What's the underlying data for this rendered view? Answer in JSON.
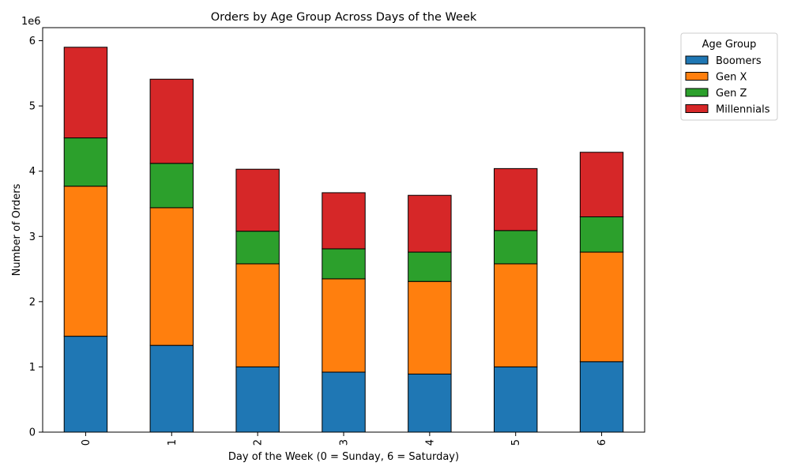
{
  "chart_data": {
    "type": "bar",
    "stacked": true,
    "title": "Orders by Age Group Across Days of the Week",
    "xlabel": "Day of the Week (0 = Sunday, 6 = Saturday)",
    "ylabel": "Number of Orders",
    "y_offset_label": "1e6",
    "categories": [
      "0",
      "1",
      "2",
      "3",
      "4",
      "5",
      "6"
    ],
    "ylim": [
      0,
      6200000
    ],
    "yticks": [
      0,
      1000000,
      2000000,
      3000000,
      4000000,
      5000000,
      6000000
    ],
    "ytick_labels": [
      "0",
      "1",
      "2",
      "3",
      "4",
      "5",
      "6"
    ],
    "grid": false,
    "legend": {
      "title": "Age Group",
      "placement": "outside-top-right"
    },
    "series": [
      {
        "name": "Boomers",
        "color": "#1f77b4",
        "values": [
          1470000,
          1330000,
          1000000,
          920000,
          890000,
          1000000,
          1080000
        ]
      },
      {
        "name": "Gen X",
        "color": "#ff7f0e",
        "values": [
          2300000,
          2110000,
          1580000,
          1430000,
          1420000,
          1580000,
          1680000
        ]
      },
      {
        "name": "Gen Z",
        "color": "#2ca02c",
        "values": [
          740000,
          680000,
          500000,
          460000,
          450000,
          510000,
          540000
        ]
      },
      {
        "name": "Millennials",
        "color": "#d62728",
        "values": [
          1390000,
          1290000,
          950000,
          860000,
          870000,
          950000,
          990000
        ]
      }
    ]
  }
}
